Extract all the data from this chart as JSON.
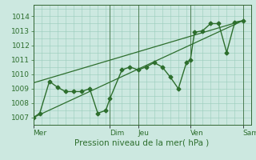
{
  "bg_color": "#cce8e0",
  "grid_color": "#99ccbb",
  "line_color": "#2d6e2d",
  "xlabel": "Pression niveau de la mer( hPa )",
  "ylim": [
    1006.5,
    1014.8
  ],
  "yticks": [
    1007,
    1008,
    1009,
    1010,
    1011,
    1012,
    1013,
    1014
  ],
  "x_day_labels": [
    "Mer",
    "Dim",
    "Jeu",
    "Ven",
    "Sam"
  ],
  "x_major_positions": [
    0,
    9.5,
    13,
    19.5,
    26
  ],
  "xlim": [
    0,
    27
  ],
  "main_line_x": [
    0,
    0.8,
    2,
    3,
    4,
    5,
    6,
    7,
    8,
    9,
    9.5,
    11,
    12,
    13,
    14,
    15,
    16,
    17,
    18,
    19,
    19.5,
    20,
    21,
    22,
    23,
    24,
    25,
    26
  ],
  "main_line_y": [
    1007.0,
    1007.3,
    1009.5,
    1009.1,
    1008.8,
    1008.8,
    1008.8,
    1009.0,
    1007.3,
    1007.5,
    1008.3,
    1010.3,
    1010.5,
    1010.3,
    1010.5,
    1010.8,
    1010.5,
    1009.8,
    1009.0,
    1010.8,
    1011.0,
    1012.9,
    1013.0,
    1013.5,
    1013.5,
    1011.5,
    1013.6,
    1013.7
  ],
  "trend_line_x": [
    0,
    26
  ],
  "trend_line_y": [
    1007.0,
    1013.7
  ],
  "extra_line_x": [
    0,
    26
  ],
  "extra_line_y": [
    1009.4,
    1013.7
  ],
  "marker_size": 2.5,
  "linewidth": 1.0,
  "trend_linewidth": 0.9,
  "xlabel_fontsize": 7.5,
  "tick_fontsize": 6.5,
  "spine_color": "#336633"
}
